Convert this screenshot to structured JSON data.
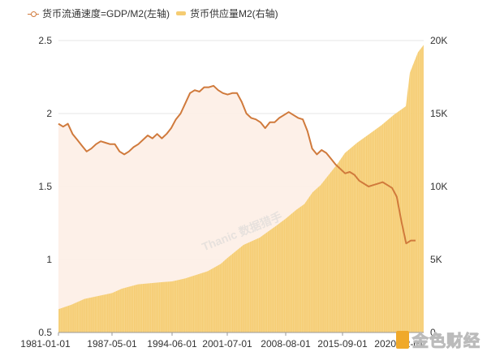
{
  "legend": {
    "series1_label": "货币流通速度=GDP/M2(左轴)",
    "series2_label": "货币供应量M2(右轴)"
  },
  "watermark": {
    "center_text": "Thanic 数据猎手",
    "brand_text": "金色财经"
  },
  "colors": {
    "velocity_line": "#d07a3c",
    "velocity_fill": "#fdeee6",
    "m2_bar": "#f5cc72",
    "grid": "#e6e6e6"
  },
  "chart_data": {
    "type": "bar+line",
    "title": "",
    "xlabel": "",
    "ylabel_left": "货币流通速度=GDP/M2",
    "ylabel_right": "货币供应量M2",
    "x_tick_labels": [
      "1981-01-01",
      "1987-05-01",
      "1994-06-01",
      "2001-07-01",
      "2008-08-01",
      "2015-09-01",
      "2020-12-01"
    ],
    "y_left_ticks": [
      "0.5",
      "1",
      "1.5",
      "2",
      "2.5"
    ],
    "y_right_ticks": [
      "0",
      "5K",
      "10K",
      "15K",
      "20K"
    ],
    "y_left_range": [
      0.5,
      2.5
    ],
    "y_right_range": [
      0,
      20000
    ],
    "grid": true,
    "legend_position": "top-left",
    "series": [
      {
        "name": "货币流通速度=GDP/M2(左轴)",
        "type": "line",
        "axis": "left",
        "points": [
          [
            "1981-01",
            1.93
          ],
          [
            "1981-07",
            1.91
          ],
          [
            "1982-01",
            1.93
          ],
          [
            "1982-07",
            1.86
          ],
          [
            "1983-07",
            1.82
          ],
          [
            "1984-07",
            1.78
          ],
          [
            "1985-01",
            1.74
          ],
          [
            "1985-07",
            1.76
          ],
          [
            "1986-07",
            1.79
          ],
          [
            "1987-07",
            1.81
          ],
          [
            "1988-07",
            1.8
          ],
          [
            "1989-07",
            1.79
          ],
          [
            "1990-07",
            1.79
          ],
          [
            "1991-07",
            1.74
          ],
          [
            "1992-07",
            1.72
          ],
          [
            "1993-07",
            1.74
          ],
          [
            "1994-07",
            1.77
          ],
          [
            "1995-07",
            1.79
          ],
          [
            "1996-07",
            1.82
          ],
          [
            "1997-07",
            1.85
          ],
          [
            "1998-07",
            1.83
          ],
          [
            "1999-07",
            1.86
          ],
          [
            "2000-07",
            1.83
          ],
          [
            "2001-07",
            1.86
          ],
          [
            "2002-07",
            1.9
          ],
          [
            "2003-07",
            1.96
          ],
          [
            "2004-07",
            2.0
          ],
          [
            "2005-07",
            2.07
          ],
          [
            "2006-07",
            2.14
          ],
          [
            "2007-07",
            2.16
          ],
          [
            "2008-07",
            2.15
          ],
          [
            "2009-07",
            2.18
          ],
          [
            "2010-07",
            2.18
          ],
          [
            "2011-07",
            2.19
          ],
          [
            "2012-07",
            2.16
          ],
          [
            "2013-07",
            2.14
          ],
          [
            "2014-07",
            2.13
          ],
          [
            "2015-07",
            2.14
          ],
          [
            "2016-07",
            2.14
          ],
          [
            "2017-07",
            2.08
          ],
          [
            "2018-07",
            2.0
          ],
          [
            "2019-07",
            1.97
          ],
          [
            "2020-07",
            1.96
          ],
          [
            "2021-07",
            1.94
          ],
          [
            "2022-07",
            1.9
          ],
          [
            "2023-07",
            1.94
          ],
          [
            "2024-07",
            1.94
          ],
          [
            "2025-07",
            1.97
          ],
          [
            "2026-07",
            1.99
          ],
          [
            "2027-07",
            2.01
          ],
          [
            "2028-07",
            1.99
          ],
          [
            "2029-07",
            1.97
          ],
          [
            "2030-07",
            1.96
          ],
          [
            "2031-07",
            1.88
          ],
          [
            "2032-07",
            1.76
          ],
          [
            "2033-07",
            1.72
          ],
          [
            "2034-07",
            1.75
          ],
          [
            "2035-07",
            1.73
          ],
          [
            "2036-07",
            1.69
          ],
          [
            "2037-07",
            1.65
          ],
          [
            "2038-07",
            1.62
          ],
          [
            "2039-07",
            1.59
          ],
          [
            "2040-07",
            1.6
          ],
          [
            "2041-07",
            1.58
          ],
          [
            "2042-07",
            1.54
          ],
          [
            "2043-07",
            1.52
          ],
          [
            "2044-07",
            1.5
          ],
          [
            "2045-07",
            1.51
          ],
          [
            "2046-07",
            1.52
          ],
          [
            "2047-07",
            1.53
          ],
          [
            "2048-07",
            1.51
          ],
          [
            "2049-07",
            1.49
          ],
          [
            "2050-01",
            1.43
          ],
          [
            "2050-07",
            1.26
          ],
          [
            "2050-11",
            1.11
          ],
          [
            "2051-01",
            1.13
          ],
          [
            "2051-06",
            1.13
          ]
        ]
      },
      {
        "name": "货币供应量M2(右轴)",
        "type": "bar",
        "axis": "right",
        "points": [
          [
            "1981-01",
            1600
          ],
          [
            "1983-01",
            1900
          ],
          [
            "1985-01",
            2300
          ],
          [
            "1987-05",
            2700
          ],
          [
            "1989-01",
            3000
          ],
          [
            "1991-01",
            3300
          ],
          [
            "1993-01",
            3450
          ],
          [
            "1994-06",
            3500
          ],
          [
            "1996-01",
            3700
          ],
          [
            "1998-01",
            4200
          ],
          [
            "2000-01",
            4700
          ],
          [
            "2001-07",
            5100
          ],
          [
            "2003-01",
            6000
          ],
          [
            "2005-01",
            6500
          ],
          [
            "2006-01",
            6900
          ],
          [
            "2007-01",
            7300
          ],
          [
            "2008-08",
            7800
          ],
          [
            "2009-06",
            8400
          ],
          [
            "2010-06",
            8800
          ],
          [
            "2011-06",
            9600
          ],
          [
            "2012-06",
            10100
          ],
          [
            "2013-06",
            10800
          ],
          [
            "2014-06",
            11500
          ],
          [
            "2015-09",
            12300
          ],
          [
            "2016-06",
            13000
          ],
          [
            "2017-06",
            13600
          ],
          [
            "2018-06",
            14200
          ],
          [
            "2019-06",
            14900
          ],
          [
            "2020-02",
            15500
          ],
          [
            "2020-05",
            17800
          ],
          [
            "2020-12",
            19200
          ],
          [
            "2021-03",
            19700
          ]
        ]
      }
    ]
  }
}
